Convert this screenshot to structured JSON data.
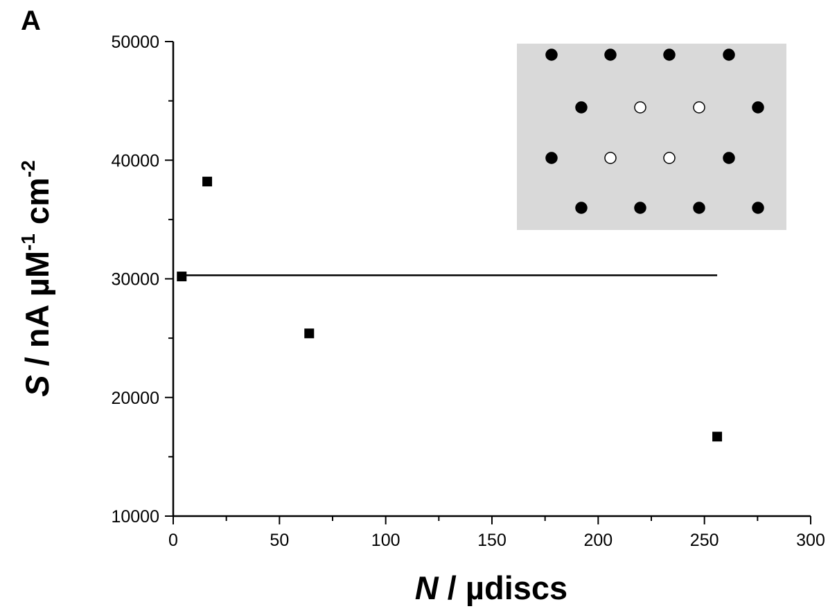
{
  "panel_label": "A",
  "chart_data": {
    "type": "scatter",
    "xlim": [
      0,
      300
    ],
    "ylim": [
      10000,
      50000
    ],
    "x_ticks": [
      0,
      50,
      100,
      150,
      200,
      250,
      300
    ],
    "y_ticks": [
      10000,
      20000,
      30000,
      40000,
      50000
    ],
    "x_tick_labels": [
      "0",
      "50",
      "100",
      "150",
      "200",
      "250",
      "300"
    ],
    "y_tick_labels": [
      "10000",
      "20000",
      "30000",
      "40000",
      "50000"
    ],
    "xlabel": {
      "symbol": "N",
      "rest": " / µdiscs"
    },
    "ylabel": {
      "symbol": "S",
      "rest": " / nA µM",
      "sup1": "-1",
      "mid": " cm",
      "sup2": "-2"
    },
    "series": [
      {
        "marker": "square",
        "color": "#000000",
        "points": [
          {
            "x": 4,
            "y": 30200
          },
          {
            "x": 16,
            "y": 38200
          },
          {
            "x": 64,
            "y": 25400
          },
          {
            "x": 256,
            "y": 16700
          }
        ]
      }
    ],
    "reference_line": {
      "y": 30300,
      "x_from": 4,
      "x_to": 256,
      "color": "#000000"
    },
    "grid": false,
    "legend": "none"
  },
  "inset": {
    "background": "#d9d9d9",
    "rows": [
      [
        "filled",
        "filled",
        "filled",
        "filled"
      ],
      [
        "filled",
        "open",
        "open",
        "filled"
      ],
      [
        "filled",
        "open",
        "open",
        "filled"
      ],
      [
        "filled",
        "filled",
        "filled",
        "filled"
      ]
    ]
  }
}
